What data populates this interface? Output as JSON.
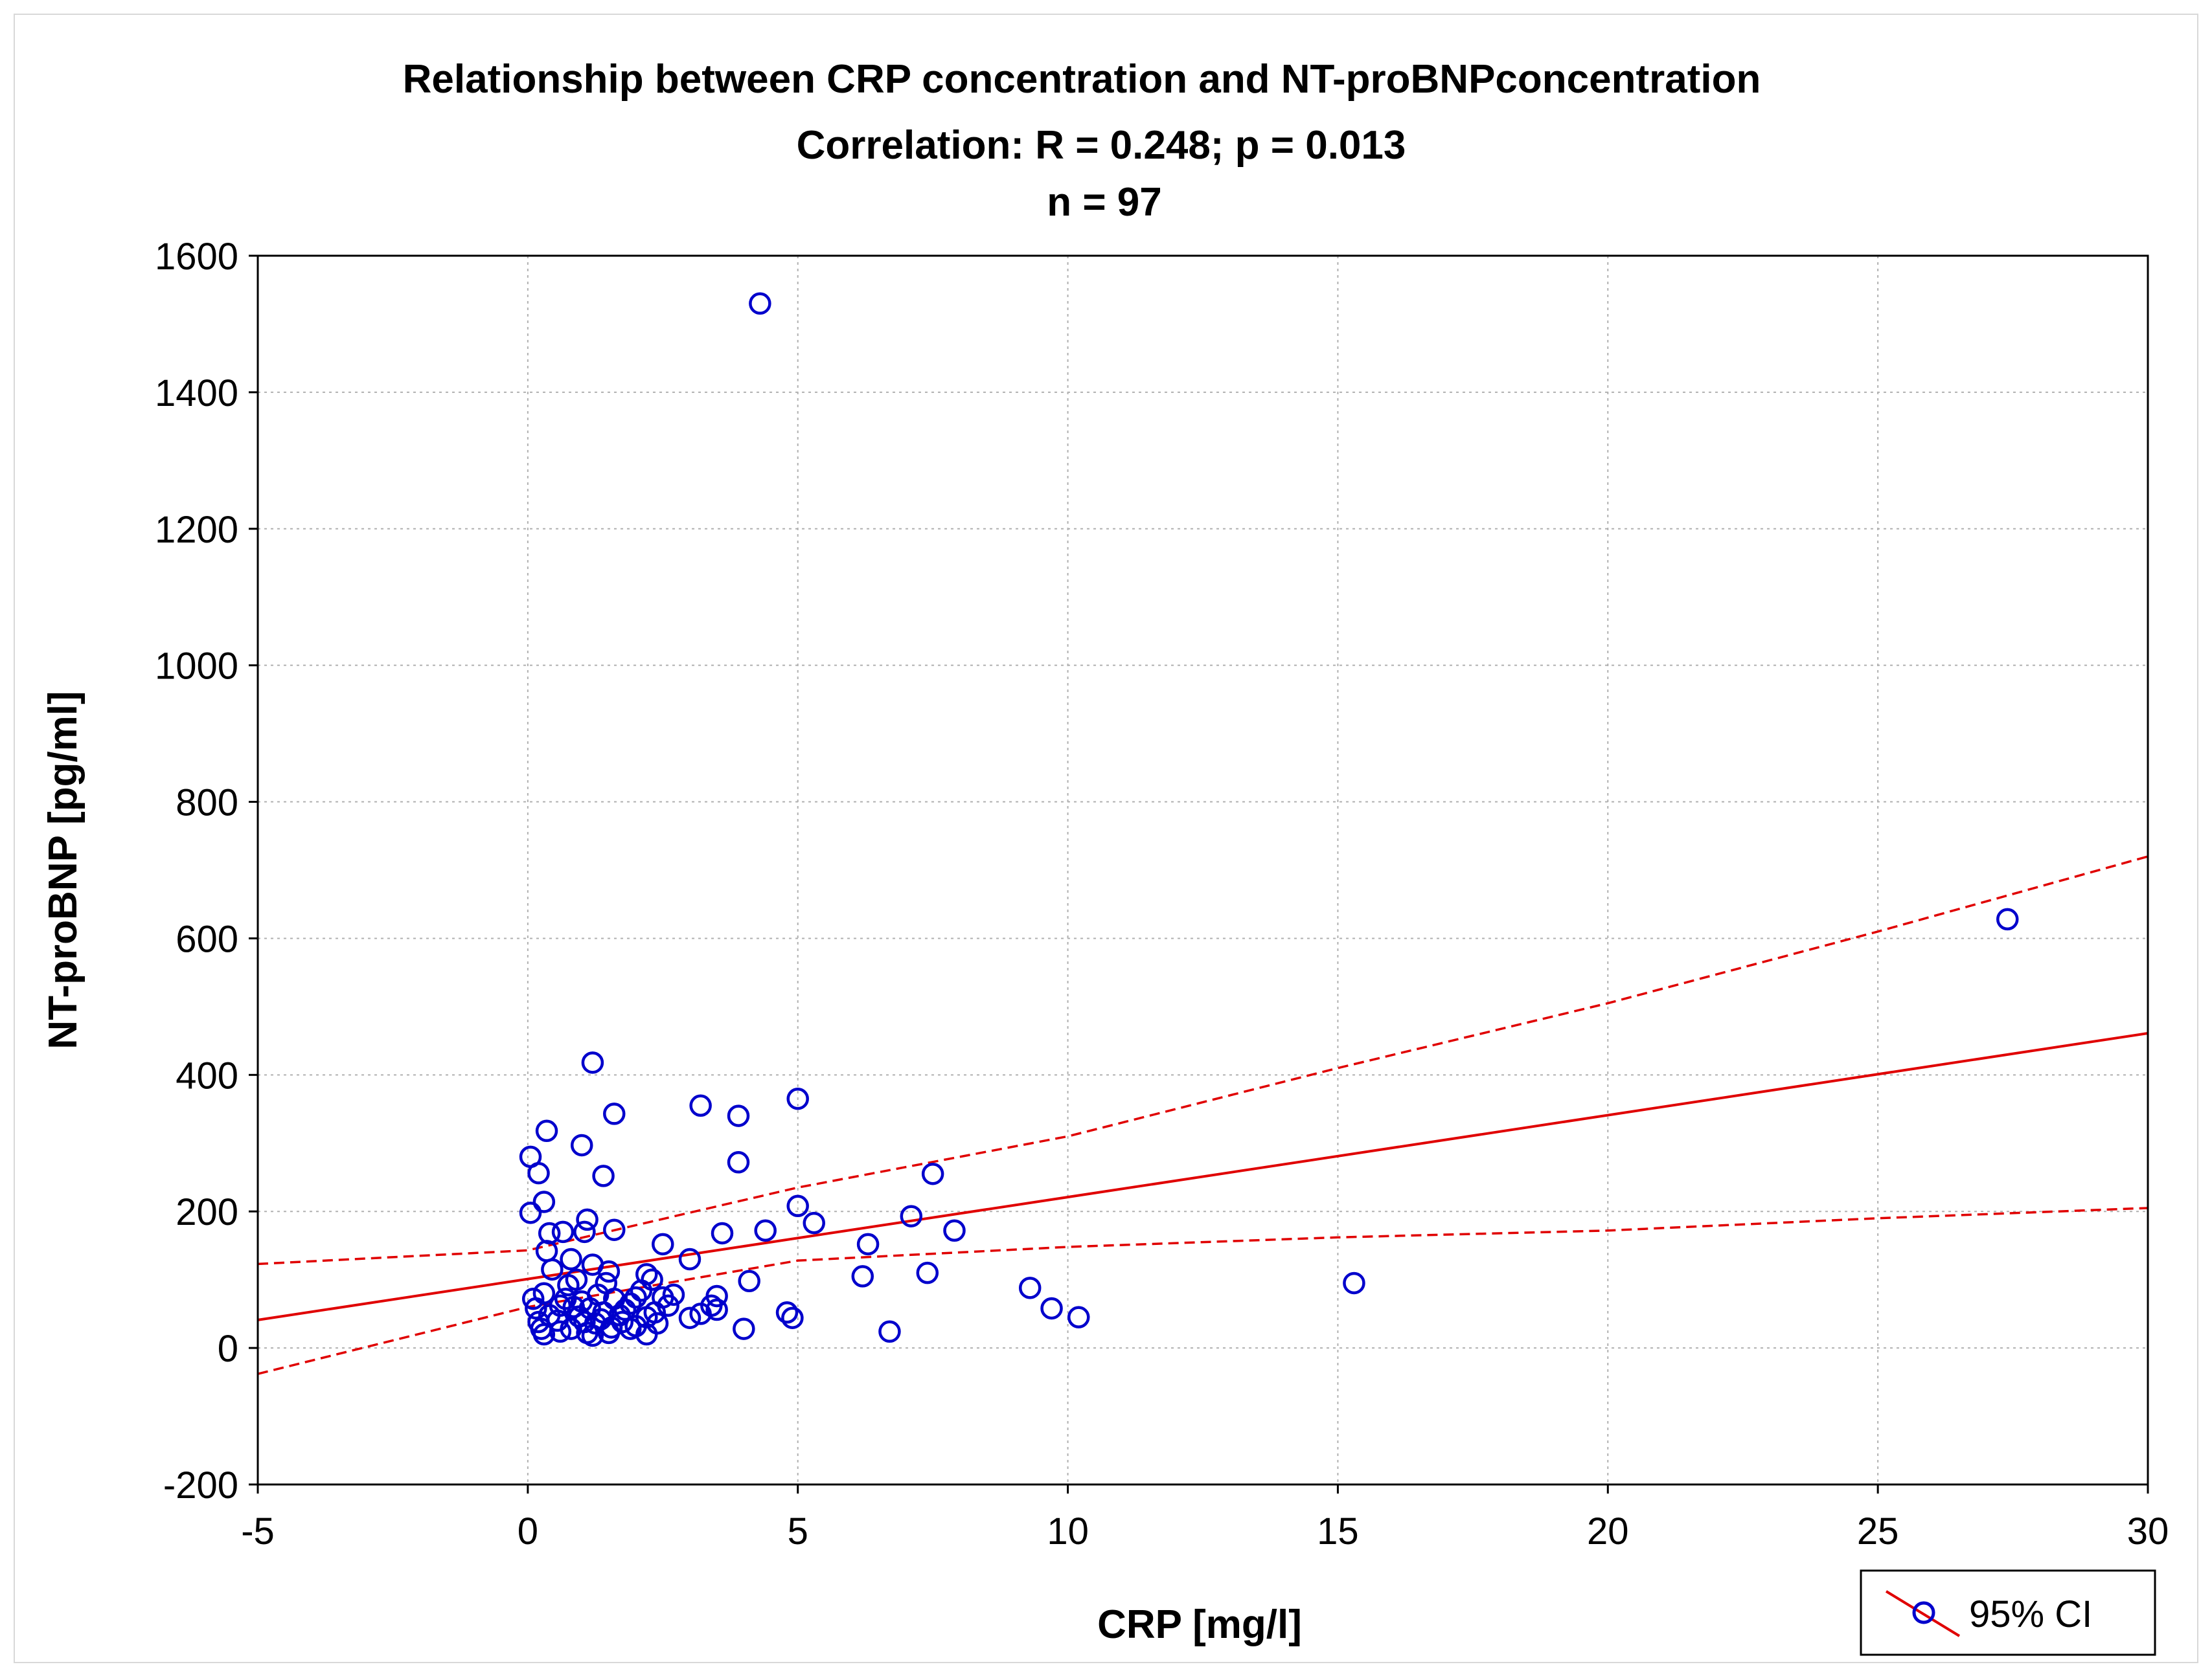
{
  "chart_data": {
    "type": "scatter",
    "title_line1": "Relationship between CRP concentration and NT-proBNPconcentration",
    "title_line2": "Correlation: R = 0.248; p = 0.013",
    "title_line3": "n = 97",
    "xlabel": "CRP [mg/l]",
    "ylabel": "NT-proBNP [pg/ml]",
    "xlim": [
      -5,
      30
    ],
    "ylim": [
      -200,
      1600
    ],
    "xticks": [
      -5,
      0,
      5,
      10,
      15,
      20,
      25,
      30
    ],
    "yticks": [
      -200,
      0,
      200,
      400,
      600,
      800,
      1000,
      1200,
      1400,
      1600
    ],
    "grid": true,
    "legend": {
      "position": "bottom-right",
      "label": "95% CI"
    },
    "colors": {
      "points": "#0000cc",
      "fit": "#e00000",
      "grid": "#b0b0b0"
    },
    "regression": {
      "intercept": 101,
      "slope": 12
    },
    "confidence_band": {
      "x": [
        -5,
        0,
        5,
        10,
        15,
        20,
        25,
        30
      ],
      "upper": [
        123,
        143,
        235,
        310,
        410,
        505,
        610,
        720
      ],
      "lower": [
        -38,
        60,
        128,
        148,
        162,
        172,
        190,
        205
      ]
    },
    "points": [
      [
        4.3,
        1530
      ],
      [
        27.4,
        628
      ],
      [
        1.2,
        418
      ],
      [
        5.0,
        365
      ],
      [
        3.2,
        355
      ],
      [
        1.6,
        343
      ],
      [
        3.9,
        340
      ],
      [
        0.35,
        318
      ],
      [
        1.0,
        297
      ],
      [
        0.05,
        280
      ],
      [
        3.9,
        272
      ],
      [
        0.2,
        256
      ],
      [
        7.5,
        255
      ],
      [
        1.4,
        252
      ],
      [
        0.3,
        214
      ],
      [
        5.0,
        208
      ],
      [
        0.05,
        198
      ],
      [
        7.1,
        193
      ],
      [
        1.1,
        188
      ],
      [
        5.3,
        183
      ],
      [
        0.65,
        170
      ],
      [
        1.05,
        170
      ],
      [
        0.4,
        168
      ],
      [
        1.6,
        173
      ],
      [
        4.4,
        172
      ],
      [
        3.6,
        168
      ],
      [
        7.9,
        172
      ],
      [
        6.3,
        152
      ],
      [
        2.5,
        152
      ],
      [
        0.35,
        142
      ],
      [
        0.8,
        130
      ],
      [
        3.0,
        130
      ],
      [
        1.2,
        122
      ],
      [
        0.45,
        115
      ],
      [
        1.5,
        112
      ],
      [
        2.2,
        108
      ],
      [
        7.4,
        110
      ],
      [
        6.2,
        105
      ],
      [
        0.9,
        100
      ],
      [
        2.3,
        100
      ],
      [
        4.1,
        98
      ],
      [
        15.3,
        95
      ],
      [
        9.3,
        88
      ],
      [
        0.3,
        80
      ],
      [
        1.3,
        78
      ],
      [
        2.7,
        78
      ],
      [
        0.7,
        72
      ],
      [
        1.6,
        72
      ],
      [
        2.0,
        74
      ],
      [
        2.5,
        74
      ],
      [
        0.1,
        72
      ],
      [
        3.5,
        76
      ],
      [
        1.0,
        68
      ],
      [
        1.9,
        65
      ],
      [
        0.6,
        62
      ],
      [
        0.85,
        60
      ],
      [
        1.15,
        58
      ],
      [
        3.5,
        56
      ],
      [
        4.8,
        52
      ],
      [
        1.4,
        52
      ],
      [
        0.4,
        48
      ],
      [
        1.7,
        48
      ],
      [
        2.2,
        45
      ],
      [
        0.2,
        38
      ],
      [
        1.25,
        36
      ],
      [
        2.4,
        36
      ],
      [
        2.0,
        32
      ],
      [
        3.0,
        44
      ],
      [
        4.9,
        44
      ],
      [
        1.55,
        30
      ],
      [
        0.8,
        28
      ],
      [
        9.7,
        58
      ],
      [
        10.2,
        45
      ],
      [
        0.6,
        24
      ],
      [
        1.1,
        22
      ],
      [
        1.9,
        28
      ],
      [
        4.0,
        28
      ],
      [
        0.3,
        20
      ],
      [
        1.5,
        22
      ],
      [
        2.2,
        20
      ],
      [
        6.7,
        24
      ],
      [
        1.2,
        18
      ],
      [
        0.55,
        40
      ],
      [
        1.35,
        42
      ],
      [
        2.6,
        62
      ],
      [
        0.15,
        58
      ],
      [
        1.8,
        56
      ],
      [
        3.2,
        50
      ],
      [
        0.95,
        46
      ],
      [
        2.1,
        84
      ],
      [
        0.75,
        92
      ],
      [
        1.45,
        95
      ],
      [
        3.4,
        62
      ],
      [
        1.05,
        38
      ],
      [
        0.25,
        28
      ],
      [
        1.75,
        38
      ],
      [
        2.35,
        52
      ]
    ]
  }
}
